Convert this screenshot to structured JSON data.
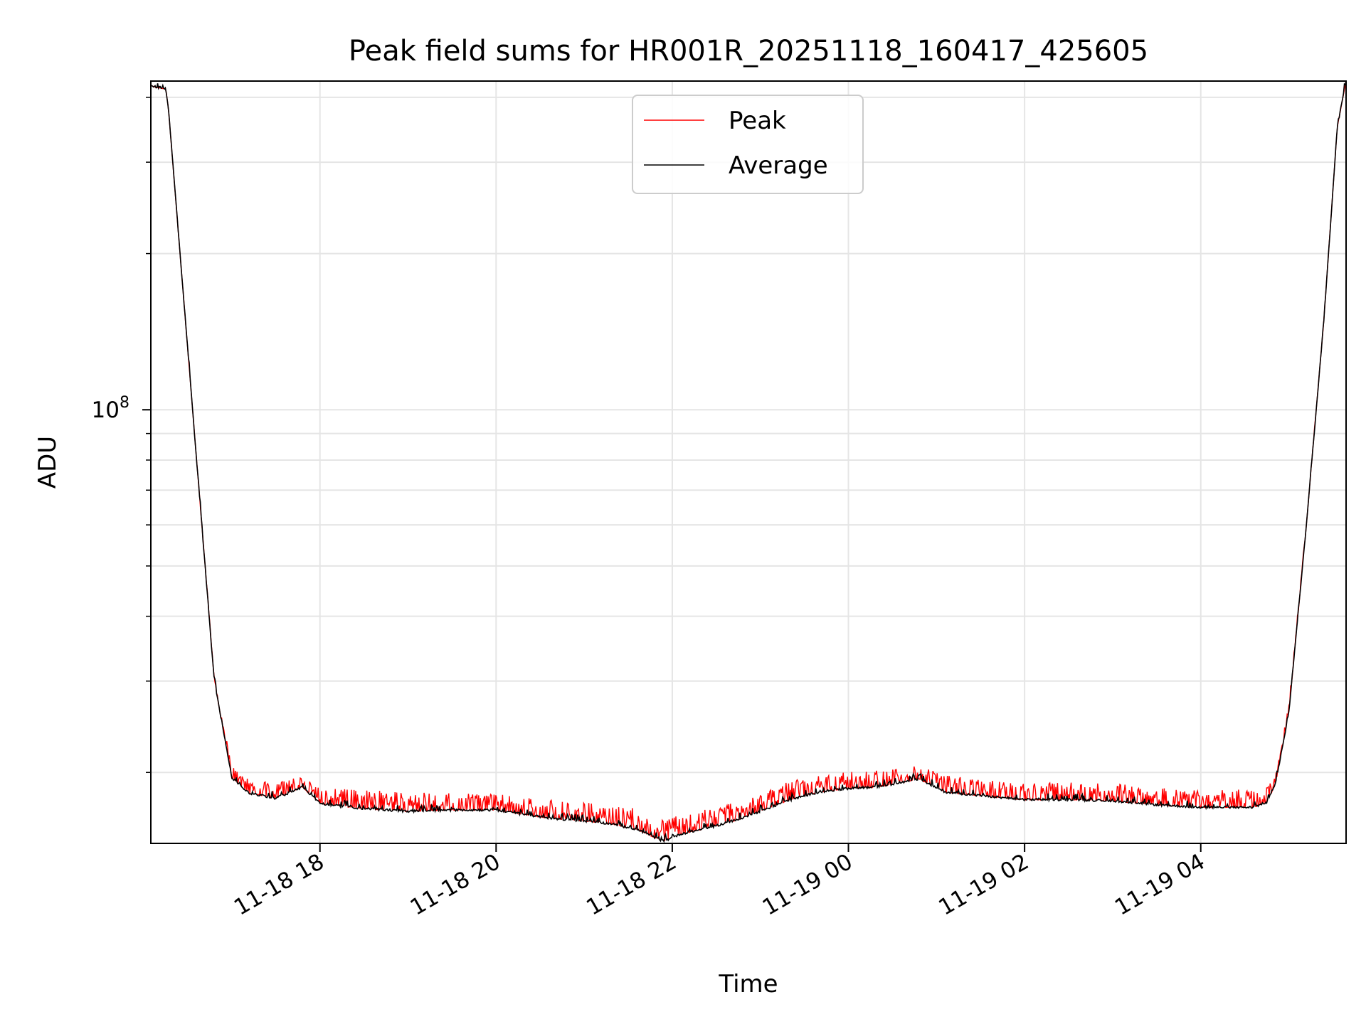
{
  "chart_data": {
    "type": "line",
    "title": "Peak field sums for HR001R_20251118_160417_425605",
    "xlabel": "Time",
    "ylabel": "ADU",
    "yscale": "log",
    "grid": true,
    "xlim_hours": [
      16.08,
      29.65
    ],
    "ylim": [
      14600000,
      430000000
    ],
    "x_ticks": [
      {
        "hour": 18,
        "label": "11-18 18"
      },
      {
        "hour": 20,
        "label": "11-18 20"
      },
      {
        "hour": 22,
        "label": "11-18 22"
      },
      {
        "hour": 24,
        "label": "11-19 00"
      },
      {
        "hour": 26,
        "label": "11-19 02"
      },
      {
        "hour": 28,
        "label": "11-19 04"
      }
    ],
    "y_ticks": [
      {
        "value": 100000000,
        "base": "10",
        "exp": "8"
      }
    ],
    "legend": {
      "position": "upper-center",
      "entries": [
        {
          "name": "Peak",
          "color": "#ff0000"
        },
        {
          "name": "Average",
          "color": "#000000"
        }
      ]
    },
    "series": [
      {
        "name": "Average",
        "color": "#000000",
        "x_hours": [
          16.08,
          16.25,
          16.28,
          16.5,
          16.8,
          17.0,
          17.2,
          17.5,
          17.8,
          18.0,
          18.5,
          19.0,
          19.5,
          20.0,
          20.3,
          20.6,
          21.0,
          21.3,
          21.6,
          21.9,
          22.1,
          22.4,
          22.7,
          23.0,
          23.3,
          23.6,
          24.0,
          24.3,
          24.6,
          24.8,
          25.1,
          25.5,
          26.0,
          26.5,
          27.0,
          27.5,
          28.0,
          28.3,
          28.6,
          28.75,
          28.85,
          29.0,
          29.2,
          29.4,
          29.55,
          29.65
        ],
        "values": [
          420000000,
          415000000,
          380000000,
          130000000,
          30000000,
          19500000,
          18200000,
          17800000,
          18700000,
          17400000,
          17000000,
          16800000,
          16900000,
          16900000,
          16600000,
          16300000,
          16100000,
          15900000,
          15500000,
          14700000,
          15200000,
          15600000,
          16100000,
          16800000,
          17600000,
          18200000,
          18600000,
          18700000,
          19100000,
          19400000,
          18300000,
          18000000,
          17700000,
          17700000,
          17600000,
          17300000,
          17100000,
          17100000,
          17100000,
          17500000,
          19000000,
          26000000,
          60000000,
          150000000,
          350000000,
          430000000
        ]
      },
      {
        "name": "Peak",
        "color": "#ff0000",
        "x_hours": [
          16.08,
          16.25,
          16.28,
          16.5,
          16.8,
          17.0,
          17.2,
          17.5,
          17.8,
          18.0,
          18.5,
          19.0,
          19.5,
          20.0,
          20.3,
          20.6,
          21.0,
          21.3,
          21.6,
          21.9,
          22.1,
          22.4,
          22.7,
          23.0,
          23.3,
          23.6,
          24.0,
          24.3,
          24.6,
          24.8,
          25.1,
          25.5,
          26.0,
          26.5,
          27.0,
          27.5,
          28.0,
          28.3,
          28.6,
          28.75,
          28.85,
          29.0,
          29.2,
          29.4,
          29.55,
          29.65
        ],
        "values": [
          420000000,
          415000000,
          380000000,
          130000000,
          30500000,
          20500000,
          19200000,
          19000000,
          19600000,
          18500000,
          18400000,
          18200000,
          18100000,
          18100000,
          17800000,
          17600000,
          17400000,
          17200000,
          16900000,
          16100000,
          16500000,
          16900000,
          17400000,
          18100000,
          19000000,
          19600000,
          19900000,
          20000000,
          20300000,
          20500000,
          19600000,
          19300000,
          19000000,
          19000000,
          18900000,
          18600000,
          18400000,
          18400000,
          18400000,
          18700000,
          20000000,
          27000000,
          61000000,
          151000000,
          351000000,
          430000000
        ]
      }
    ]
  }
}
